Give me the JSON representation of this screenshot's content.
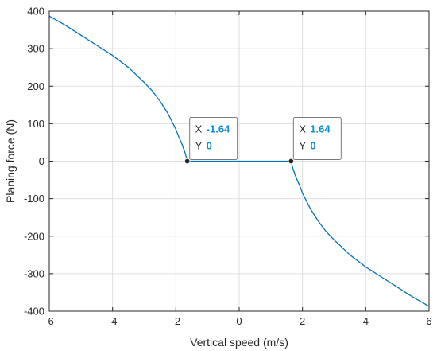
{
  "colors": {
    "line": "#0072bd",
    "grid": "#dfdfdf",
    "axis": "#262626",
    "datatip_value": "#0a8ad8",
    "marker": "#222222"
  },
  "chart_data": {
    "type": "line",
    "xlabel": "Vertical speed (m/s)",
    "ylabel": "Planing force (N)",
    "xlim": [
      -6,
      6
    ],
    "ylim": [
      -400,
      400
    ],
    "xticks": [
      -6,
      -4,
      -2,
      0,
      2,
      4,
      6
    ],
    "yticks": [
      -400,
      -300,
      -200,
      -100,
      0,
      100,
      200,
      300,
      400
    ],
    "xtick_labels": [
      "-6",
      "-4",
      "-2",
      "0",
      "2",
      "4",
      "6"
    ],
    "ytick_labels": [
      "-400",
      "-300",
      "-200",
      "-100",
      "0",
      "100",
      "200",
      "300",
      "400"
    ],
    "grid": true,
    "series": [
      {
        "x": [
          -6,
          -5.5,
          -5,
          -4.5,
          -4,
          -3.5,
          -3,
          -2.75,
          -2.5,
          -2.25,
          -2,
          -1.9,
          -1.8,
          -1.7,
          -1.64,
          1.64,
          1.7,
          1.8,
          1.9,
          2,
          2.25,
          2.5,
          2.75,
          3,
          3.5,
          4,
          4.5,
          5,
          5.5,
          6
        ],
        "y": [
          387,
          363,
          336,
          309,
          282,
          250,
          210,
          188,
          160,
          127,
          85,
          63,
          44,
          20,
          0,
          0,
          -20,
          -44,
          -63,
          -85,
          -127,
          -160,
          -188,
          -210,
          -250,
          -282,
          -309,
          -336,
          -363,
          -387
        ]
      }
    ],
    "datatips": [
      {
        "x_key": "X",
        "x_value": "-1.64",
        "y_key": "Y",
        "y_value": "0",
        "x": -1.64,
        "y": 0
      },
      {
        "x_key": "X",
        "x_value": "1.64",
        "y_key": "Y",
        "y_value": "0",
        "x": 1.64,
        "y": 0
      }
    ]
  }
}
